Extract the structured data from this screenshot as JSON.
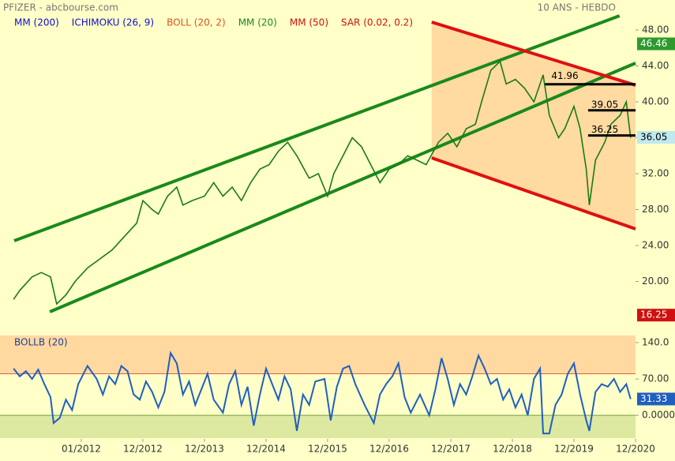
{
  "header": {
    "title": "PFIZER - abcbourse.com",
    "period": "10 ANS - HEBDO"
  },
  "chart_data": [
    {
      "type": "line",
      "indicators": [
        {
          "name": "MM (200)",
          "color": "#1010c8"
        },
        {
          "name": "ICHIMOKU (26, 9)",
          "color": "#1010c8"
        },
        {
          "name": "BOLL (20, 2)",
          "color": "#e05020"
        },
        {
          "name": "MM (20)",
          "color": "#1a8a1a"
        },
        {
          "name": "MM (50)",
          "color": "#d01010"
        },
        {
          "name": "SAR (0.02, 0.2)",
          "color": "#d01010"
        }
      ],
      "x": [
        2010.9,
        2011.0,
        2011.2,
        2011.35,
        2011.5,
        2011.6,
        2011.75,
        2011.9,
        2012.1,
        2012.3,
        2012.5,
        2012.7,
        2012.9,
        2013.0,
        2013.15,
        2013.25,
        2013.4,
        2013.55,
        2013.65,
        2013.8,
        2014.0,
        2014.15,
        2014.3,
        2014.45,
        2014.6,
        2014.75,
        2014.9,
        2015.05,
        2015.2,
        2015.35,
        2015.5,
        2015.7,
        2015.85,
        2016.0,
        2016.1,
        2016.25,
        2016.4,
        2016.55,
        2016.7,
        2016.85,
        2017.0,
        2017.15,
        2017.3,
        2017.45,
        2017.6,
        2017.8,
        2017.95,
        2018.1,
        2018.25,
        2018.4,
        2018.5,
        2018.65,
        2018.8,
        2018.9,
        2019.05,
        2019.2,
        2019.35,
        2019.5,
        2019.6,
        2019.75,
        2019.85,
        2020.0,
        2020.1,
        2020.2,
        2020.25,
        2020.35,
        2020.5,
        2020.6,
        2020.75,
        2020.85,
        2020.92
      ],
      "series": [
        {
          "color": "#1a7a1a",
          "values": [
            18.0,
            19.0,
            20.5,
            21.0,
            20.5,
            17.5,
            18.5,
            20.0,
            21.5,
            22.5,
            23.5,
            25.0,
            26.5,
            29.0,
            28.0,
            27.5,
            29.5,
            30.5,
            28.5,
            29.0,
            29.5,
            31.0,
            29.5,
            30.5,
            29.0,
            31.0,
            32.5,
            33.0,
            34.5,
            35.5,
            34.0,
            31.5,
            32.0,
            29.5,
            32.0,
            34.0,
            36.0,
            35.0,
            33.0,
            31.0,
            32.5,
            33.0,
            34.0,
            33.5,
            33.0,
            35.5,
            36.5,
            35.0,
            37.0,
            37.5,
            40.0,
            43.5,
            44.5,
            42.0,
            42.5,
            41.5,
            40.0,
            43.0,
            38.5,
            36.0,
            37.0,
            39.5,
            37.0,
            32.5,
            28.5,
            33.5,
            35.5,
            37.5,
            38.5,
            40.0,
            36.0
          ]
        }
      ],
      "xlim": [
        2010.68,
        2021.0
      ],
      "xticks": [
        {
          "value": 2012.0,
          "label": "01/2012"
        },
        {
          "value": 2013.0,
          "label": "12/2012"
        },
        {
          "value": 2014.0,
          "label": "12/2013"
        },
        {
          "value": 2015.0,
          "label": "12/2014"
        },
        {
          "value": 2016.0,
          "label": "12/2015"
        },
        {
          "value": 2017.0,
          "label": "12/2016"
        },
        {
          "value": 2018.0,
          "label": "12/2017"
        },
        {
          "value": 2019.0,
          "label": "12/2018"
        },
        {
          "value": 2020.0,
          "label": "12/2019"
        },
        {
          "value": 2021.0,
          "label": "12/2020"
        }
      ],
      "ylim": [
        14.86,
        51.34
      ],
      "yticks": [
        {
          "value": 20,
          "label": "20.00"
        },
        {
          "value": 24,
          "label": "24.00"
        },
        {
          "value": 28,
          "label": "28.00"
        },
        {
          "value": 32,
          "label": "32.00"
        },
        {
          "value": 36,
          "label": "36.00"
        },
        {
          "value": 40,
          "label": "40.00"
        },
        {
          "value": 44,
          "label": "44.00"
        },
        {
          "value": 48,
          "label": "48.00"
        }
      ],
      "trendlines": [
        {
          "color": "#1a8a1a",
          "x": [
            2010.91,
            2020.74
          ],
          "y": [
            24.53,
            49.58
          ]
        },
        {
          "color": "#1a8a1a",
          "x": [
            2011.49,
            2021.0
          ],
          "y": [
            16.62,
            44.31
          ]
        },
        {
          "color": "#e01010",
          "x": [
            2017.69,
            2021.0
          ],
          "y": [
            48.88,
            41.85
          ]
        },
        {
          "color": "#e01010",
          "x": [
            2017.69,
            2021.0
          ],
          "y": [
            33.76,
            25.85
          ]
        }
      ],
      "levels": [
        41.96,
        39.05,
        36.25
      ],
      "level_x": [
        2019.53,
        2020.23,
        2020.23
      ],
      "markers": [
        {
          "value": 46.46,
          "color": "#2e9a2e"
        },
        {
          "value": 36.05,
          "color": "#bfe8f0"
        },
        {
          "value": 16.25,
          "color": "#d01010"
        }
      ]
    },
    {
      "type": "line",
      "title": "BOLLB (20)",
      "x": [
        2010.9,
        2011.0,
        2011.1,
        2011.2,
        2011.3,
        2011.4,
        2011.5,
        2011.55,
        2011.65,
        2011.75,
        2011.85,
        2011.95,
        2012.1,
        2012.25,
        2012.35,
        2012.45,
        2012.55,
        2012.65,
        2012.75,
        2012.85,
        2012.95,
        2013.05,
        2013.15,
        2013.25,
        2013.35,
        2013.45,
        2013.55,
        2013.65,
        2013.75,
        2013.85,
        2013.95,
        2014.05,
        2014.15,
        2014.3,
        2014.4,
        2014.5,
        2014.6,
        2014.7,
        2014.8,
        2014.9,
        2015.0,
        2015.1,
        2015.2,
        2015.3,
        2015.4,
        2015.5,
        2015.6,
        2015.7,
        2015.8,
        2015.95,
        2016.05,
        2016.15,
        2016.25,
        2016.35,
        2016.45,
        2016.6,
        2016.75,
        2016.85,
        2016.95,
        2017.05,
        2017.15,
        2017.25,
        2017.35,
        2017.5,
        2017.65,
        2017.75,
        2017.85,
        2017.95,
        2018.05,
        2018.15,
        2018.25,
        2018.35,
        2018.45,
        2018.55,
        2018.65,
        2018.75,
        2018.85,
        2018.95,
        2019.05,
        2019.15,
        2019.25,
        2019.35,
        2019.45,
        2019.5,
        2019.6,
        2019.7,
        2019.8,
        2019.9,
        2020.0,
        2020.1,
        2020.2,
        2020.25,
        2020.35,
        2020.45,
        2020.55,
        2020.65,
        2020.75,
        2020.85,
        2020.92
      ],
      "series": [
        {
          "color": "#1f5fbf",
          "values": [
            90,
            75,
            85,
            70,
            88,
            60,
            35,
            -15,
            -5,
            30,
            10,
            60,
            95,
            70,
            40,
            75,
            60,
            95,
            85,
            40,
            30,
            65,
            45,
            15,
            45,
            120,
            100,
            40,
            65,
            20,
            50,
            80,
            30,
            5,
            60,
            85,
            20,
            55,
            -20,
            40,
            90,
            60,
            30,
            75,
            50,
            -30,
            40,
            20,
            65,
            70,
            -10,
            55,
            90,
            95,
            60,
            20,
            -15,
            40,
            60,
            75,
            100,
            35,
            5,
            40,
            0,
            50,
            110,
            70,
            20,
            60,
            40,
            75,
            115,
            90,
            60,
            70,
            30,
            50,
            15,
            40,
            0,
            70,
            90,
            -35,
            -35,
            20,
            40,
            80,
            100,
            40,
            -10,
            -30,
            45,
            60,
            55,
            70,
            45,
            60,
            31.33
          ]
        }
      ],
      "xlim": [
        2010.68,
        2021.0
      ],
      "ylim": [
        -44,
        153.7
      ],
      "yticks": [
        {
          "value": 0,
          "label": "0.0000"
        },
        {
          "value": 70,
          "label": "70.00"
        },
        {
          "value": 140,
          "label": "140.0"
        }
      ],
      "bands": [
        {
          "from": 80,
          "to": 153.7,
          "color": "#ffd9a0",
          "line": "#e06040"
        },
        {
          "from": -44,
          "to": 0,
          "color": "#dde8a0",
          "line": "#70a040"
        }
      ],
      "markers": [
        {
          "value": 31.33,
          "color": "#1f5fbf"
        }
      ]
    }
  ]
}
